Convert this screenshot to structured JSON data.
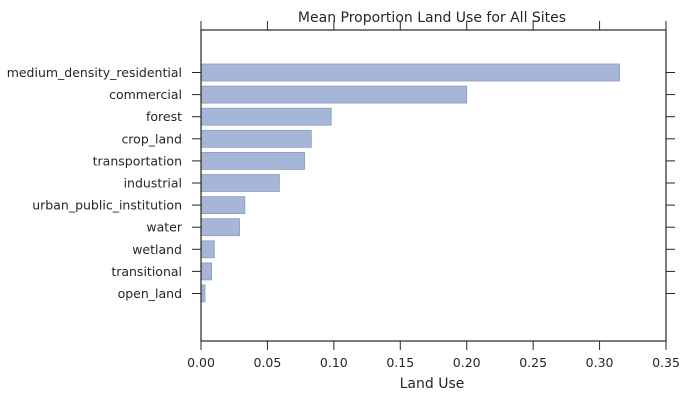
{
  "chart_data": {
    "type": "bar",
    "orientation": "horizontal",
    "title": "Mean Proportion Land Use for All Sites",
    "xlabel": "Land Use",
    "ylabel": "",
    "categories": [
      "medium_density_residential",
      "commercial",
      "forest",
      "crop_land",
      "transportation",
      "industrial",
      "urban_public_institution",
      "water",
      "wetland",
      "transitional",
      "open_land"
    ],
    "values": [
      0.315,
      0.2,
      0.098,
      0.083,
      0.078,
      0.059,
      0.033,
      0.029,
      0.01,
      0.008,
      0.003
    ],
    "xlim": [
      0,
      0.35
    ],
    "xticks": [
      "0.00",
      "0.05",
      "0.10",
      "0.15",
      "0.20",
      "0.25",
      "0.30",
      "0.35"
    ],
    "grid": false,
    "legend": "none",
    "colors": {
      "bar_fill": "#a5b6d9",
      "bar_edge": "#8a9cc2",
      "axis": "#262626"
    }
  }
}
